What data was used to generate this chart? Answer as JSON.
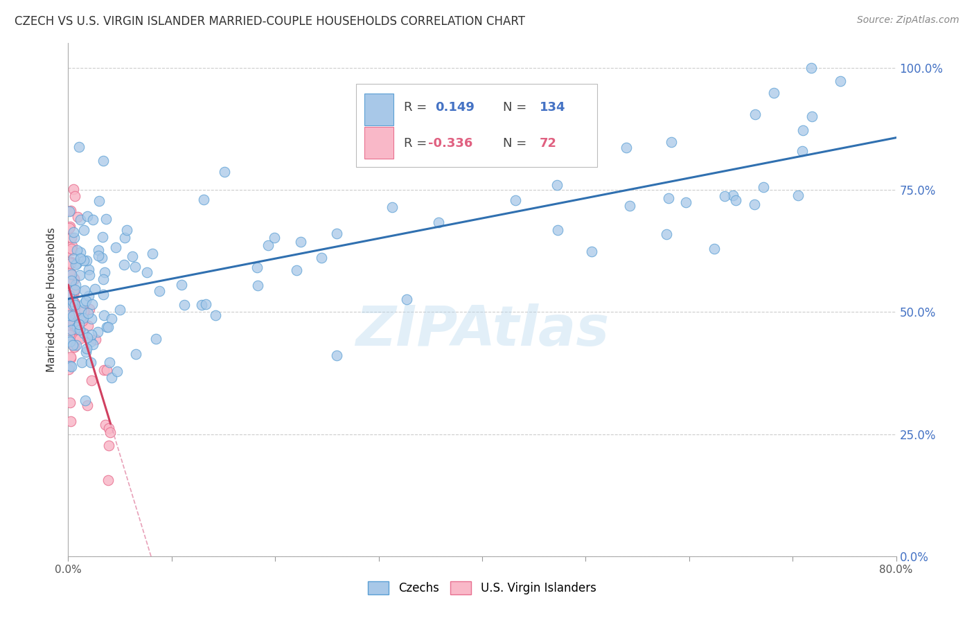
{
  "title": "CZECH VS U.S. VIRGIN ISLANDER MARRIED-COUPLE HOUSEHOLDS CORRELATION CHART",
  "source": "Source: ZipAtlas.com",
  "ylabel": "Married-couple Households",
  "yticks": [
    0.0,
    0.25,
    0.5,
    0.75,
    1.0
  ],
  "ytick_labels": [
    "0.0%",
    "25.0%",
    "50.0%",
    "75.0%",
    "100.0%"
  ],
  "xlim": [
    0.0,
    0.8
  ],
  "ylim": [
    0.0,
    1.05
  ],
  "r_czech": 0.149,
  "n_czech": 134,
  "r_vi": -0.336,
  "n_vi": 72,
  "color_czech_fill": "#a8c8e8",
  "color_czech_edge": "#5a9fd4",
  "color_czech_line": "#3070b0",
  "color_vi_fill": "#f9b8c8",
  "color_vi_edge": "#e87090",
  "color_vi_line": "#d04060",
  "color_vi_dashed": "#e8a0b8",
  "legend_label_czech": "Czechs",
  "legend_label_vi": "U.S. Virgin Islanders"
}
